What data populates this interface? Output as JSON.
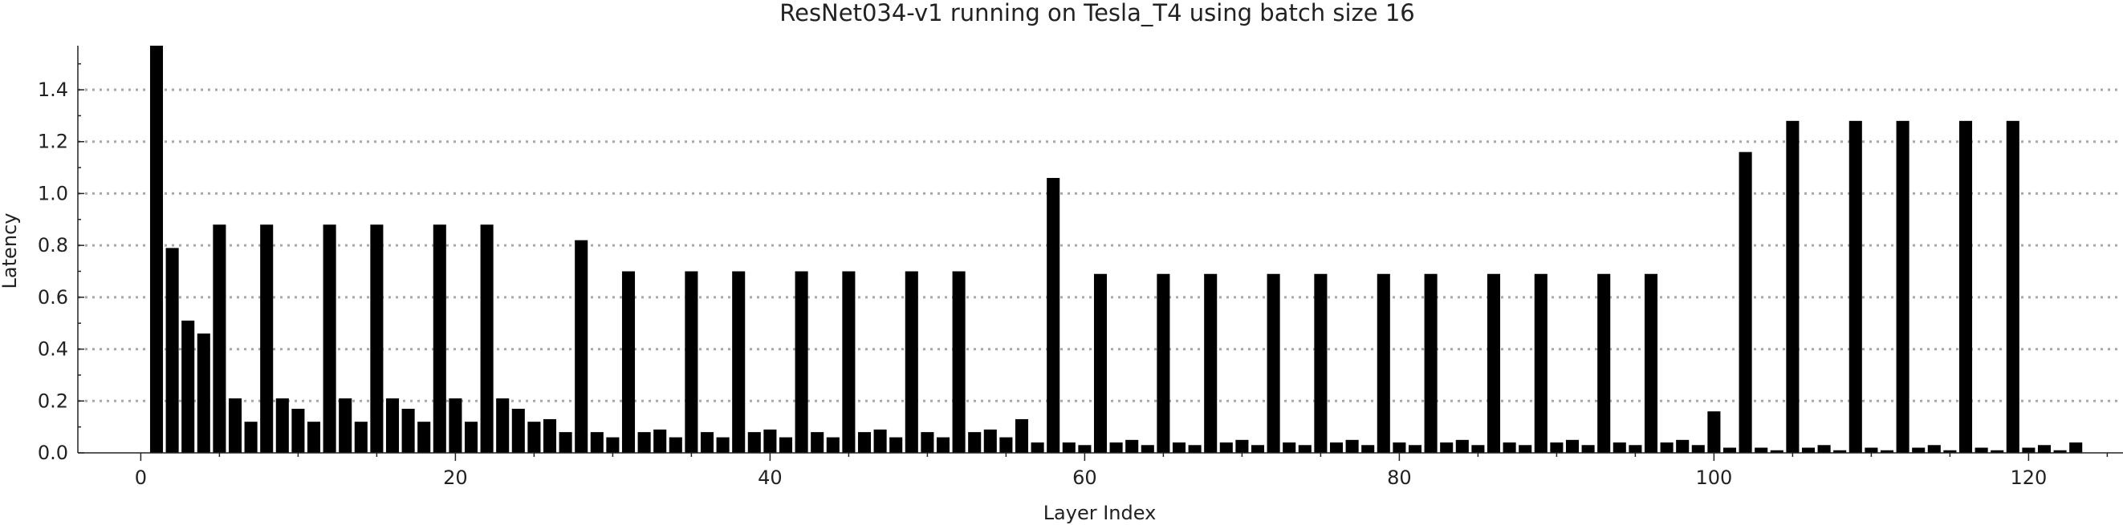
{
  "chart_data": {
    "type": "bar",
    "title": "ResNet034-v1 running on Tesla_T4 using batch size 16",
    "xlabel": "Layer Index",
    "ylabel": "Latency",
    "xlim": [
      -4,
      126
    ],
    "ylim": [
      0,
      1.57
    ],
    "xticks": [
      0,
      20,
      40,
      60,
      80,
      100,
      120
    ],
    "yticks": [
      0.0,
      0.2,
      0.4,
      0.6,
      0.8,
      1.0,
      1.2,
      1.4
    ],
    "grid": "horizontal-dotted",
    "x": [
      1,
      2,
      3,
      4,
      5,
      6,
      7,
      8,
      9,
      10,
      11,
      12,
      13,
      14,
      15,
      16,
      17,
      18,
      19,
      20,
      21,
      22,
      23,
      24,
      25,
      26,
      27,
      28,
      29,
      30,
      31,
      32,
      33,
      34,
      35,
      36,
      37,
      38,
      39,
      40,
      41,
      42,
      43,
      44,
      45,
      46,
      47,
      48,
      49,
      50,
      51,
      52,
      53,
      54,
      55,
      56,
      57,
      58,
      59,
      60,
      61,
      62,
      63,
      64,
      65,
      66,
      67,
      68,
      69,
      70,
      71,
      72,
      73,
      74,
      75,
      76,
      77,
      78,
      79,
      80,
      81,
      82,
      83,
      84,
      85,
      86,
      87,
      88,
      89,
      90,
      91,
      92,
      93,
      94,
      95,
      96,
      97,
      98,
      99,
      100,
      101,
      102,
      103,
      104,
      105,
      106,
      107,
      108,
      109,
      110,
      111,
      112,
      113,
      114,
      115,
      116,
      117,
      118,
      119,
      120,
      121,
      122,
      123,
      124
    ],
    "values": [
      1.57,
      0.79,
      0.51,
      0.46,
      0.88,
      0.21,
      0.12,
      0.88,
      0.21,
      0.17,
      0.12,
      0.88,
      0.21,
      0.12,
      0.88,
      0.21,
      0.17,
      0.12,
      0.88,
      0.21,
      0.12,
      0.88,
      0.21,
      0.17,
      0.12,
      0.13,
      0.08,
      0.82,
      0.08,
      0.06,
      0.7,
      0.08,
      0.09,
      0.06,
      0.7,
      0.08,
      0.06,
      0.7,
      0.08,
      0.09,
      0.06,
      0.7,
      0.08,
      0.06,
      0.7,
      0.08,
      0.09,
      0.06,
      0.7,
      0.08,
      0.06,
      0.7,
      0.08,
      0.09,
      0.06,
      0.13,
      0.04,
      1.06,
      0.04,
      0.03,
      0.69,
      0.04,
      0.05,
      0.03,
      0.69,
      0.04,
      0.03,
      0.69,
      0.04,
      0.05,
      0.03,
      0.69,
      0.04,
      0.03,
      0.69,
      0.04,
      0.05,
      0.03,
      0.69,
      0.04,
      0.03,
      0.69,
      0.04,
      0.05,
      0.03,
      0.69,
      0.04,
      0.03,
      0.69,
      0.04,
      0.05,
      0.03,
      0.69,
      0.04,
      0.03,
      0.69,
      0.04,
      0.05,
      0.03,
      0.16,
      0.02,
      1.16,
      0.02,
      0.01,
      1.28,
      0.02,
      0.03,
      0.01,
      1.28,
      0.02,
      0.01,
      1.28,
      0.02,
      0.03,
      0.01,
      1.28,
      0.02,
      0.01,
      1.28,
      0.02,
      0.03,
      0.01,
      0.04,
      0.0
    ]
  }
}
